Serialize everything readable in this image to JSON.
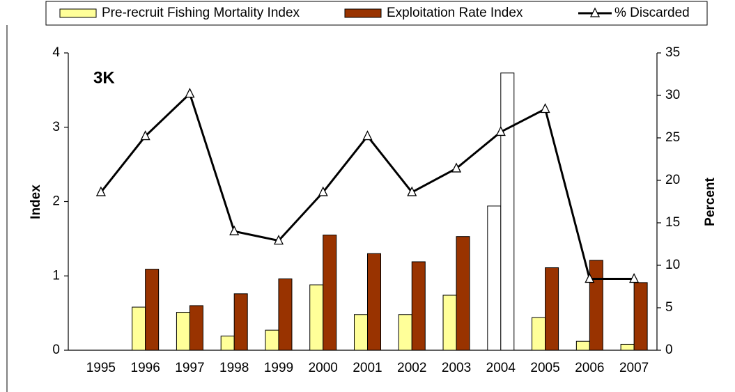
{
  "chart_data": {
    "type": "bar-line",
    "annotation": "3K",
    "y_label": "Index",
    "y2_label": "Percent",
    "categories": [
      "1995",
      "1996",
      "1997",
      "1998",
      "1999",
      "2000",
      "2001",
      "2002",
      "2003",
      "2004",
      "2005",
      "2006",
      "2007"
    ],
    "series": [
      {
        "name": "Pre-recruit Fishing Mortality Index",
        "type": "bar",
        "color": "#ffff99",
        "colors": [
          null,
          null,
          null,
          null,
          null,
          null,
          null,
          null,
          null,
          "#ffffff",
          null,
          null,
          null
        ],
        "values": [
          null,
          0.58,
          0.51,
          0.19,
          0.27,
          0.88,
          0.48,
          0.48,
          0.74,
          1.94,
          0.44,
          0.12,
          0.08
        ]
      },
      {
        "name": "Exploitation Rate Index",
        "type": "bar",
        "color": "#993300",
        "colors": [
          null,
          null,
          null,
          null,
          null,
          null,
          null,
          null,
          null,
          "#ffffff",
          null,
          null,
          null
        ],
        "values": [
          null,
          1.09,
          0.6,
          0.76,
          0.96,
          1.55,
          1.3,
          1.19,
          1.53,
          3.73,
          1.11,
          1.21,
          0.91
        ]
      },
      {
        "name": "% Discarded",
        "type": "line",
        "axis": "y2",
        "color": "#000000",
        "values": [
          18.6,
          25.2,
          30.2,
          14.0,
          12.9,
          18.6,
          25.2,
          18.6,
          21.4,
          25.7,
          28.4,
          8.4,
          8.4
        ]
      }
    ],
    "ylim": [
      0,
      4
    ],
    "yticks": [
      0,
      1,
      2,
      3,
      4
    ],
    "y2lim": [
      0,
      35
    ],
    "y2ticks": [
      0,
      5,
      10,
      15,
      20,
      25,
      30,
      35
    ],
    "legend": "top"
  }
}
